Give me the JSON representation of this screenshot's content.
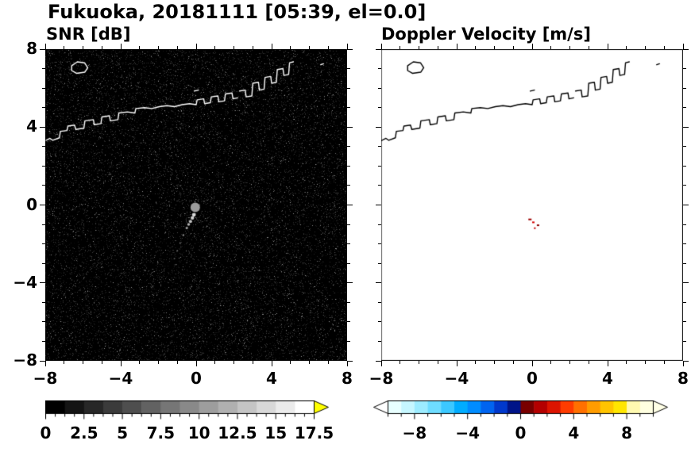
{
  "figure": {
    "title": "Fukuoka, 20181111 [05:39, el=0.0]"
  },
  "axes": {
    "xlim": [
      -8,
      8
    ],
    "ylim": [
      -8,
      8
    ],
    "minor_step": 1,
    "x_tick_values": [
      -8,
      -4,
      0,
      4,
      8
    ],
    "x_tick_labels": [
      "−8",
      "−4",
      "0",
      "4",
      "8"
    ],
    "y_tick_values": [
      8,
      4,
      0,
      -4,
      -8
    ],
    "y_tick_labels": [
      "8",
      "4",
      "0",
      "−4",
      "−8"
    ]
  },
  "chart_data": [
    {
      "type": "heatmap",
      "title": "SNR [dB]",
      "xlim": [
        -8,
        8
      ],
      "ylim": [
        -8,
        8
      ],
      "x_ticks": [
        -8,
        -4,
        0,
        4,
        8
      ],
      "y_ticks": [
        8,
        4,
        0,
        -4,
        -8
      ],
      "background": "#000000",
      "legend_position": "bottom-colorbar",
      "colorbar": {
        "range": [
          0,
          17.5
        ],
        "minor_tick_step": 0.625,
        "major_tick_step": 2.5,
        "tick_values": [
          0,
          2.5,
          5,
          7.5,
          10,
          12.5,
          15,
          17.5
        ],
        "tick_labels": [
          "0",
          "2.5",
          "5",
          "7.5",
          "10",
          "12.5",
          "15",
          "17.5"
        ],
        "segments": [
          "#000000",
          "#141414",
          "#272727",
          "#3b3b3b",
          "#4e4e4e",
          "#626262",
          "#767676",
          "#898989",
          "#9d9d9d",
          "#b0b0b0",
          "#c4c4c4",
          "#d8d8d8",
          "#ebebeb",
          "#ffffff"
        ],
        "over_color": "#ffff00"
      },
      "content": {
        "noise": "uniform dark receiver-noise speckle, no precipitation echo",
        "radar_center": {
          "x": -0.05,
          "y": -0.12,
          "r": 6,
          "color": "#9b9b9b"
        },
        "echo_points": [
          {
            "x": -0.12,
            "y": -0.5,
            "r": 2.4,
            "c": "#d8d8d8"
          },
          {
            "x": -0.2,
            "y": -0.66,
            "r": 2.2,
            "c": "#cfcfcf"
          },
          {
            "x": -0.3,
            "y": -0.84,
            "r": 2.0,
            "c": "#c0c0c0"
          },
          {
            "x": -0.4,
            "y": -1.0,
            "r": 1.8,
            "c": "#b0b0b0"
          },
          {
            "x": -0.5,
            "y": -1.18,
            "r": 1.5,
            "c": "#a0a0a0"
          },
          {
            "x": -0.68,
            "y": -1.55,
            "r": 1.2,
            "c": "#8a8a8a"
          },
          {
            "x": -0.85,
            "y": -1.95,
            "r": 1.0,
            "c": "#7a7a7a"
          },
          {
            "x": -1.0,
            "y": -2.35,
            "r": 1.0,
            "c": "#6f6f6f"
          },
          {
            "x": -1.15,
            "y": -2.75,
            "r": 0.9,
            "c": "#656565"
          }
        ]
      }
    },
    {
      "type": "heatmap",
      "title": "Doppler Velocity [m/s]",
      "xlim": [
        -8,
        8
      ],
      "ylim": [
        -8,
        8
      ],
      "x_ticks": [
        -8,
        -4,
        0,
        4,
        8
      ],
      "y_ticks": [
        8,
        4,
        0,
        -4,
        -8
      ],
      "background": "#ffffff",
      "legend_position": "bottom-colorbar",
      "colorbar": {
        "range": [
          -10,
          10
        ],
        "minor_tick_step": 1,
        "major_tick_step": 4,
        "tick_values": [
          -8,
          -4,
          0,
          4,
          8
        ],
        "tick_labels": [
          "−8",
          "−4",
          "0",
          "4",
          "8"
        ],
        "segments": [
          "#e8ffff",
          "#c6f6ff",
          "#9cebff",
          "#6edcff",
          "#3cc8ff",
          "#00acff",
          "#008cff",
          "#0064f0",
          "#0038cc",
          "#001488",
          "#780000",
          "#b40000",
          "#dc1400",
          "#ff3c00",
          "#ff7000",
          "#ff9c00",
          "#ffc400",
          "#ffe600",
          "#fff9b0",
          "#ffffe0"
        ],
        "under_color": "#ffffff",
        "over_color": "#ffffe6"
      },
      "content": {
        "velocity_specks": [
          {
            "x": -0.2,
            "y": -0.7,
            "w": 4,
            "h": 2,
            "c": "#a00000"
          },
          {
            "x": 0.0,
            "y": -0.85,
            "w": 3,
            "h": 2,
            "c": "#d40000"
          },
          {
            "x": 0.25,
            "y": -1.0,
            "w": 3,
            "h": 2,
            "c": "#8b0000"
          },
          {
            "x": 0.1,
            "y": -1.15,
            "w": 2,
            "h": 2,
            "c": "#c00000"
          }
        ]
      }
    }
  ],
  "coastline": {
    "snr_color": "#ffffff",
    "vel_color": "#000000",
    "polylines": [
      [
        [
          -8.0,
          3.3
        ],
        [
          -7.75,
          3.42
        ],
        [
          -7.6,
          3.32
        ],
        [
          -7.25,
          3.45
        ],
        [
          -7.2,
          3.78
        ],
        [
          -6.85,
          3.82
        ],
        [
          -6.8,
          4.05
        ],
        [
          -6.45,
          4.1
        ],
        [
          -6.38,
          3.88
        ],
        [
          -5.95,
          3.95
        ],
        [
          -5.9,
          4.32
        ],
        [
          -5.45,
          4.38
        ],
        [
          -5.4,
          4.12
        ],
        [
          -5.05,
          4.18
        ],
        [
          -5.0,
          4.52
        ],
        [
          -4.6,
          4.58
        ],
        [
          -4.55,
          4.32
        ],
        [
          -4.15,
          4.38
        ],
        [
          -4.1,
          4.72
        ],
        [
          -3.65,
          4.78
        ],
        [
          -3.25,
          4.72
        ],
        [
          -3.2,
          4.95
        ],
        [
          -2.75,
          5.0
        ],
        [
          -2.35,
          4.95
        ],
        [
          -1.95,
          5.05
        ],
        [
          -1.55,
          5.1
        ],
        [
          -1.15,
          5.05
        ],
        [
          -0.75,
          5.15
        ],
        [
          -0.35,
          5.2
        ],
        [
          0.0,
          5.15
        ],
        [
          0.05,
          5.4
        ],
        [
          0.4,
          5.45
        ],
        [
          0.45,
          5.2
        ],
        [
          0.75,
          5.25
        ],
        [
          0.8,
          5.55
        ],
        [
          1.15,
          5.6
        ],
        [
          1.2,
          5.3
        ],
        [
          1.5,
          5.35
        ],
        [
          1.55,
          5.7
        ],
        [
          1.9,
          5.75
        ],
        [
          1.95,
          5.45
        ],
        [
          2.2,
          5.5
        ]
      ],
      [
        [
          2.3,
          5.85
        ],
        [
          2.6,
          5.9
        ],
        [
          2.65,
          5.55
        ],
        [
          2.95,
          5.6
        ],
        [
          3.0,
          6.25
        ],
        [
          3.3,
          6.3
        ],
        [
          3.35,
          5.9
        ],
        [
          3.6,
          5.95
        ],
        [
          3.65,
          6.55
        ],
        [
          3.95,
          6.6
        ],
        [
          4.0,
          6.25
        ],
        [
          4.25,
          6.3
        ],
        [
          4.3,
          6.95
        ],
        [
          4.6,
          7.0
        ],
        [
          4.65,
          6.65
        ],
        [
          4.9,
          6.7
        ],
        [
          4.95,
          7.3
        ],
        [
          5.15,
          7.35
        ]
      ],
      [
        [
          -0.1,
          5.85
        ],
        [
          0.12,
          5.9
        ]
      ],
      [
        [
          6.6,
          7.2
        ],
        [
          6.75,
          7.25
        ]
      ]
    ],
    "islands": [
      [
        [
          -6.6,
          7.15
        ],
        [
          -6.3,
          7.35
        ],
        [
          -5.92,
          7.3
        ],
        [
          -5.75,
          7.05
        ],
        [
          -5.9,
          6.82
        ],
        [
          -6.35,
          6.76
        ],
        [
          -6.6,
          6.9
        ]
      ]
    ]
  }
}
